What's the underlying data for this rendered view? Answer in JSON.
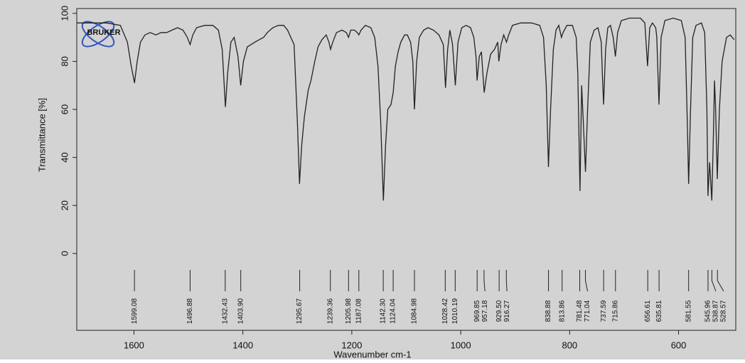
{
  "chart_data": {
    "type": "line",
    "x_label": "Wavenumber cm-1",
    "y_label": "Transmittance [%]",
    "logo_text": "BRUKER",
    "xlim": [
      1705,
      495
    ],
    "ylim": [
      -32,
      102
    ],
    "xticks": [
      1600,
      1400,
      1200,
      1000,
      800,
      600
    ],
    "yticks": [
      0,
      20,
      40,
      60,
      80,
      100
    ],
    "x": [
      1705,
      1650,
      1625,
      1612,
      1605,
      1599,
      1594,
      1588,
      1580,
      1570,
      1560,
      1550,
      1540,
      1530,
      1520,
      1510,
      1502,
      1497,
      1492,
      1485,
      1470,
      1455,
      1445,
      1438,
      1432,
      1428,
      1422,
      1416,
      1409,
      1404,
      1399,
      1392,
      1385,
      1378,
      1370,
      1362,
      1355,
      1345,
      1335,
      1325,
      1318,
      1312,
      1306,
      1300,
      1296,
      1292,
      1287,
      1280,
      1275,
      1268,
      1262,
      1255,
      1247,
      1242,
      1239,
      1235,
      1228,
      1218,
      1210,
      1206,
      1202,
      1195,
      1190,
      1187,
      1183,
      1175,
      1165,
      1158,
      1152,
      1147,
      1142,
      1138,
      1134,
      1128,
      1124,
      1120,
      1115,
      1110,
      1103,
      1098,
      1092,
      1088,
      1085,
      1081,
      1076,
      1068,
      1060,
      1050,
      1040,
      1032,
      1028,
      1024,
      1020,
      1015,
      1010,
      1005,
      998,
      990,
      982,
      976,
      972,
      970,
      966,
      962,
      957,
      952,
      945,
      938,
      932,
      930,
      926,
      921,
      916,
      912,
      905,
      890,
      870,
      855,
      848,
      843,
      839,
      835,
      830,
      825,
      820,
      815,
      812,
      805,
      795,
      788,
      785,
      781,
      778,
      775,
      771,
      767,
      762,
      755,
      748,
      742,
      740,
      737.6,
      734,
      730,
      725,
      720,
      716,
      712,
      705,
      690,
      670,
      662,
      657,
      653,
      648,
      642,
      640,
      636,
      632,
      625,
      610,
      595,
      588,
      584,
      581.5,
      578,
      574,
      568,
      558,
      552,
      548,
      546,
      543,
      539,
      536,
      534,
      532,
      529,
      525,
      520,
      512,
      505,
      498
    ],
    "series": [
      {
        "color": "#222222",
        "values": [
          96,
          96,
          95,
          88,
          78,
          71,
          80,
          88,
          91,
          92,
          91,
          92,
          92,
          93,
          94,
          93,
          90,
          87,
          91,
          94,
          95,
          95,
          93,
          85,
          61,
          75,
          88,
          90,
          82,
          70,
          80,
          86,
          87,
          88,
          89,
          90,
          92,
          94,
          95,
          95,
          93,
          90,
          87,
          55,
          29,
          45,
          57,
          68,
          72,
          80,
          86,
          89,
          91,
          88,
          85,
          88,
          92,
          93,
          92,
          90,
          93,
          93,
          92,
          91,
          93,
          95,
          94,
          90,
          78,
          55,
          22,
          45,
          60,
          62,
          67,
          78,
          84,
          88,
          91,
          91,
          88,
          80,
          60,
          80,
          90,
          93,
          94,
          93,
          91,
          87,
          69,
          85,
          93,
          87,
          70,
          88,
          94,
          95,
          94,
          90,
          82,
          72,
          82,
          84,
          67,
          75,
          83,
          85,
          88,
          80,
          87,
          91,
          88,
          91,
          95,
          96,
          96,
          95,
          90,
          70,
          36,
          60,
          85,
          93,
          95,
          90,
          92,
          95,
          95,
          90,
          75,
          26,
          70,
          55,
          34,
          60,
          88,
          93,
          94,
          88,
          75,
          62,
          85,
          94,
          95,
          90,
          82,
          92,
          97,
          98,
          98,
          96,
          78,
          94,
          96,
          94,
          90,
          62,
          90,
          97,
          98,
          97,
          90,
          55,
          29,
          60,
          90,
          95,
          96,
          92,
          60,
          24,
          38,
          22,
          50,
          72,
          60,
          31,
          60,
          80,
          90,
          91,
          89
        ]
      }
    ],
    "peaks": [
      1599.08,
      1496.88,
      1432.43,
      {
        "value": 1403.9,
        "label": "1403.90"
      },
      1295.67,
      1239.36,
      1205.98,
      1187.08,
      {
        "value": 1142.3,
        "label": "1142.30"
      },
      1124.04,
      1084.98,
      1028.42,
      1010.19,
      969.85,
      957.18,
      {
        "value": 929.5,
        "label": "929.50"
      },
      916.27,
      838.88,
      813.86,
      781.48,
      771.04,
      737.59,
      715.86,
      656.61,
      635.81,
      581.55,
      545.96,
      538.87,
      528.57
    ]
  }
}
